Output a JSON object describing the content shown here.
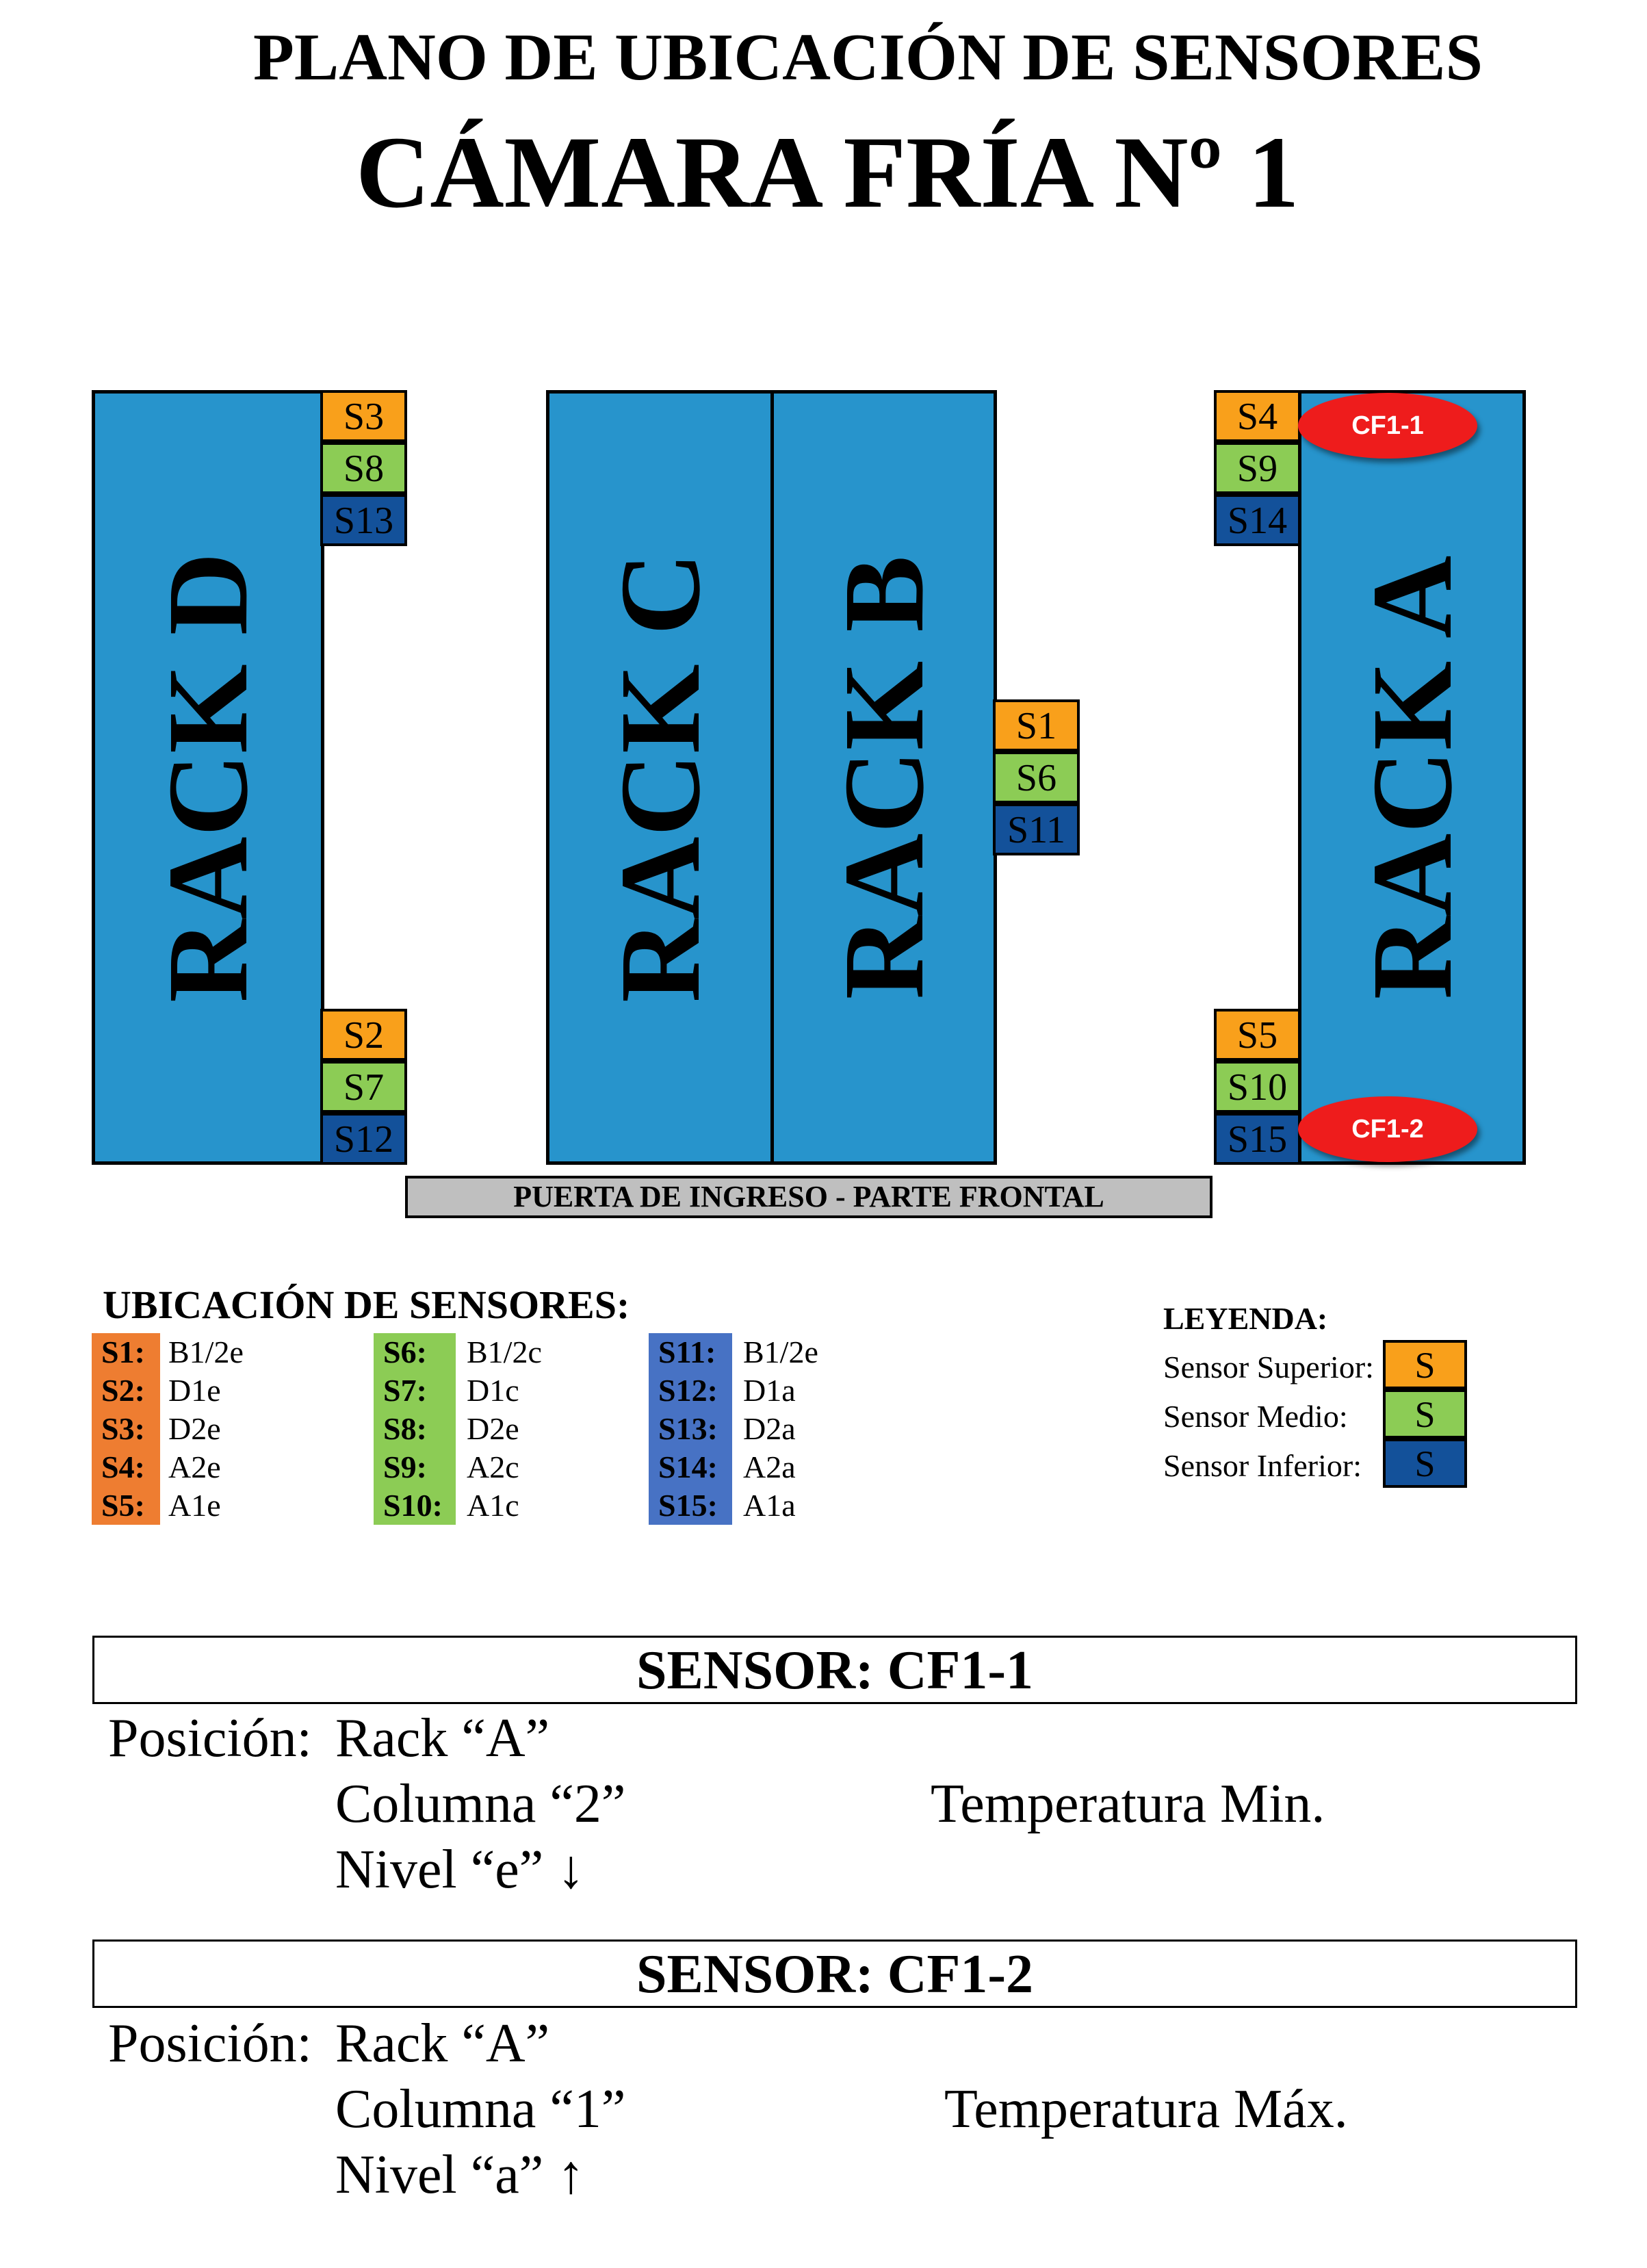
{
  "title": "PLANO DE UBICACIÓN DE SENSORES",
  "subtitle": "CÁMARA FRÍA Nº 1",
  "colors": {
    "rack": "#2794cc",
    "superior": "#f9a01b",
    "medio": "#8ccc55",
    "inferior": "#13519a",
    "oval": "#ee1c1c",
    "door": "#bfbfbf"
  },
  "racks": {
    "d": "RACK D",
    "c": "RACK C",
    "b": "RACK B",
    "a": "RACK A"
  },
  "sensors": {
    "s1": "S1",
    "s2": "S2",
    "s3": "S3",
    "s4": "S4",
    "s5": "S5",
    "s6": "S6",
    "s7": "S7",
    "s8": "S8",
    "s9": "S9",
    "s10": "S10",
    "s11": "S11",
    "s12": "S12",
    "s13": "S13",
    "s14": "S14",
    "s15": "S15"
  },
  "probes": {
    "cf11": "CF1-1",
    "cf12": "CF1-2"
  },
  "door": "PUERTA DE INGRESO - PARTE FRONTAL",
  "ubicacion": {
    "title": "UBICACIÓN DE SENSORES:",
    "col1": [
      {
        "code": "S1:",
        "value": "B1/2e"
      },
      {
        "code": "S2:",
        "value": "D1e"
      },
      {
        "code": "S3:",
        "value": "D2e"
      },
      {
        "code": "S4:",
        "value": "A2e"
      },
      {
        "code": "S5:",
        "value": "A1e"
      }
    ],
    "col2": [
      {
        "code": "S6:",
        "value": "B1/2c"
      },
      {
        "code": "S7:",
        "value": "D1c"
      },
      {
        "code": "S8:",
        "value": "D2e"
      },
      {
        "code": "S9:",
        "value": "A2c"
      },
      {
        "code": "S10:",
        "value": "A1c"
      }
    ],
    "col3": [
      {
        "code": "S11:",
        "value": "B1/2e"
      },
      {
        "code": "S12:",
        "value": "D1a"
      },
      {
        "code": "S13:",
        "value": "D2a"
      },
      {
        "code": "S14:",
        "value": "A2a"
      },
      {
        "code": "S15:",
        "value": "A1a"
      }
    ]
  },
  "legend": {
    "title": "LEYENDA:",
    "items": [
      {
        "label": "Sensor Superior:",
        "symbol": "S"
      },
      {
        "label": "Sensor Medio:",
        "symbol": "S"
      },
      {
        "label": "Sensor Inferior:",
        "symbol": "S"
      }
    ]
  },
  "sensor_cf11": {
    "header": "SENSOR: CF1-1",
    "pos_label": "Posición:",
    "rack": "Rack “A”",
    "columna": "Columna “2”",
    "nivel": "Nivel “e” ↓",
    "temp": "Temperatura Min."
  },
  "sensor_cf12": {
    "header": "SENSOR: CF1-2",
    "pos_label": "Posición:",
    "rack": "Rack “A”",
    "columna": "Columna “1”",
    "nivel": "Nivel “a” ↑",
    "temp": "Temperatura Máx."
  }
}
